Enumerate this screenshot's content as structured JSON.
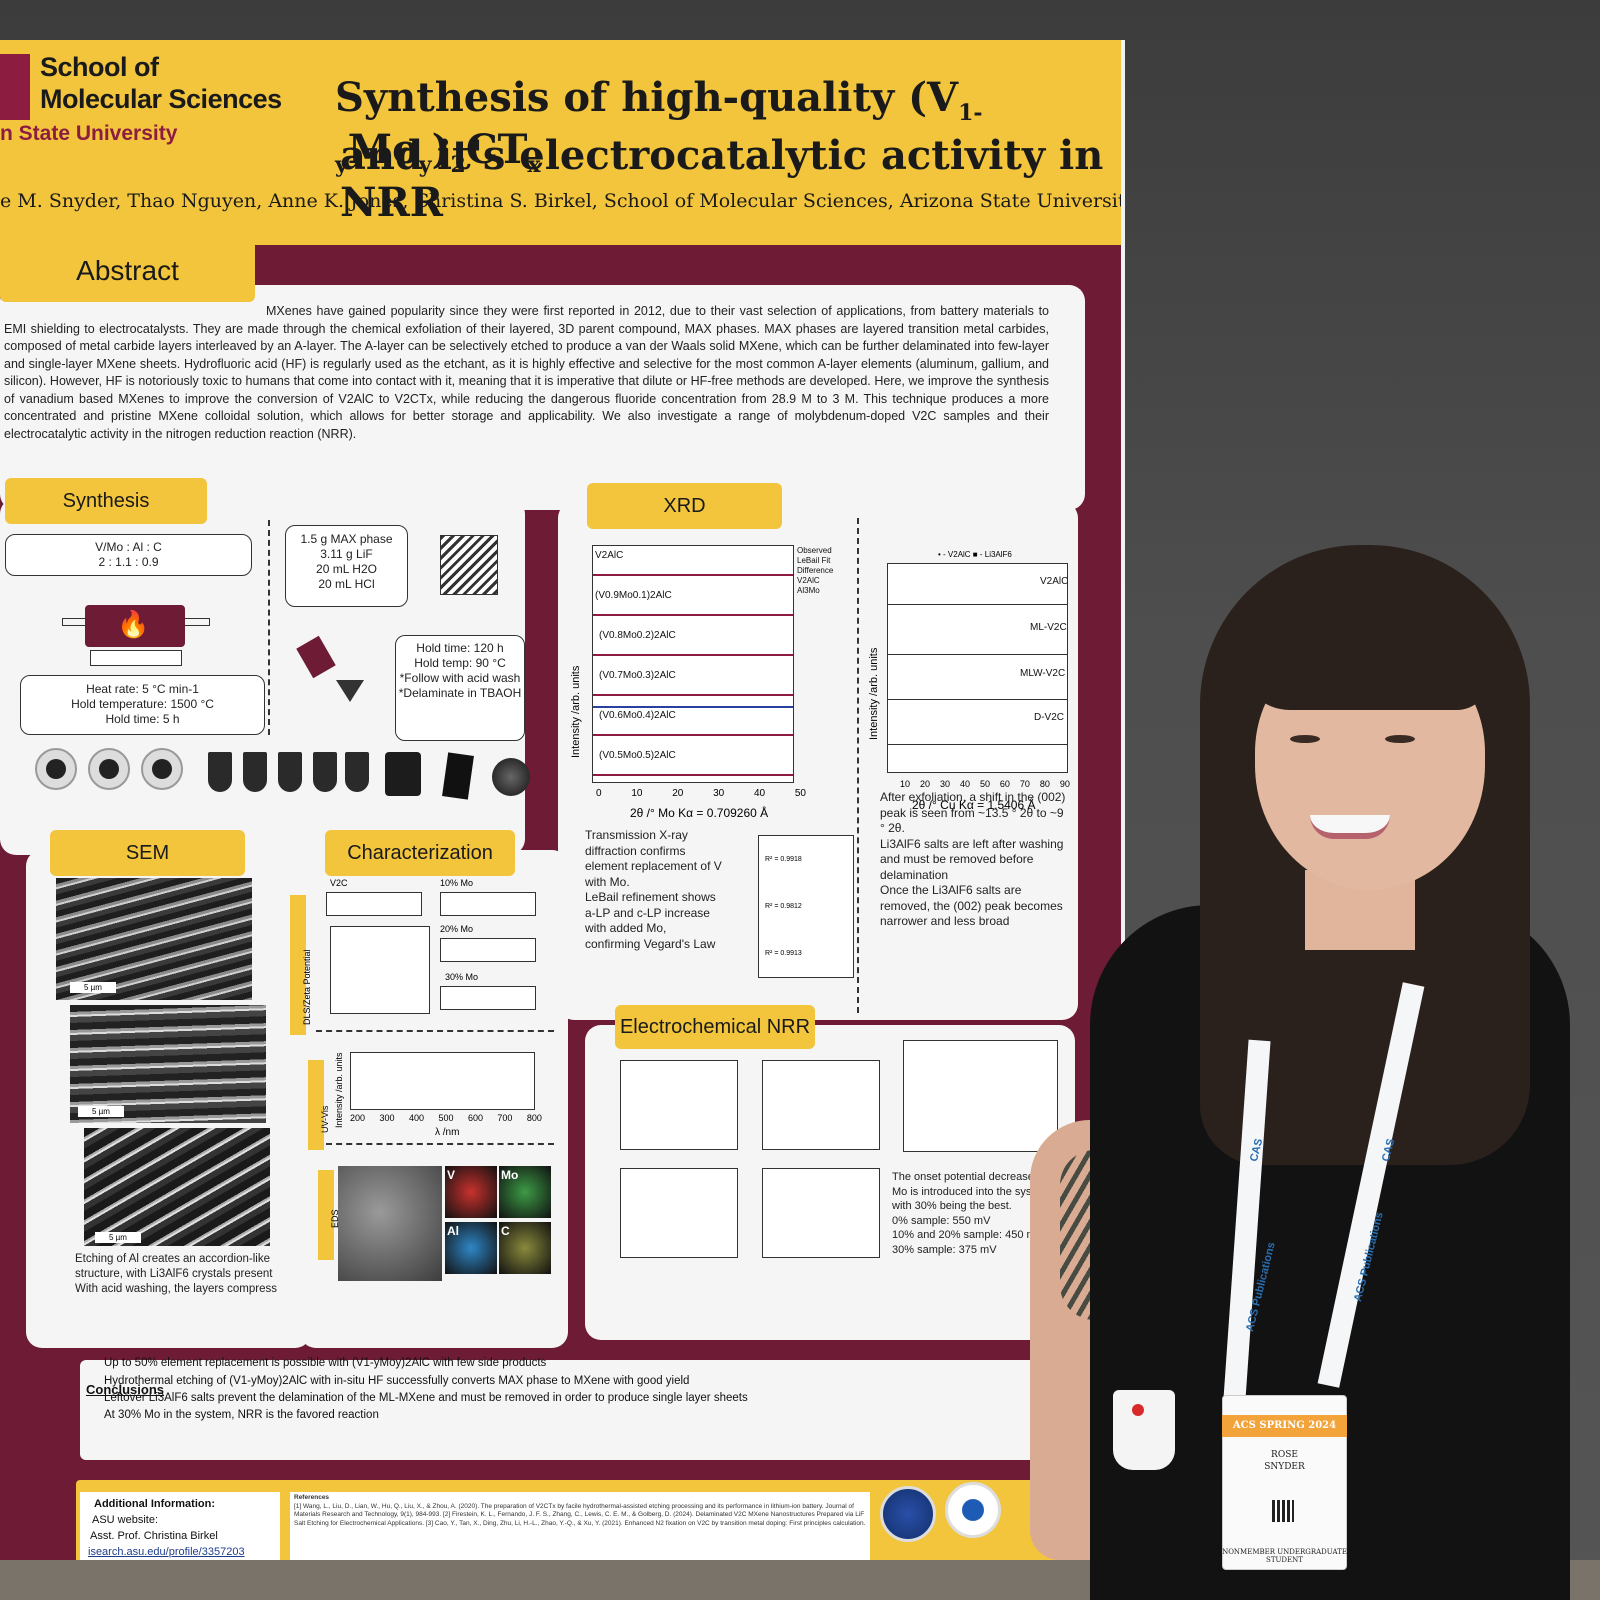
{
  "poster": {
    "logo": {
      "line1": "School of",
      "line2": "Molecular Sciences",
      "line3": "n State University"
    },
    "title_line1": "Synthesis of high-quality (V1-yMoy)2CTx",
    "title_line2": "and it's electrocatalytic activity in NRR",
    "authors": "e M. Snyder, Thao Nguyen, Anne K. Jones, Christina S. Birkel, School of Molecular Sciences, Arizona State University",
    "abstract": {
      "heading": "Abstract",
      "text": "MXenes have gained popularity since they were first reported in 2012, due to their vast selection of applications, from battery materials to EMI shielding to electrocatalysts. They are made through the chemical exfoliation of their layered, 3D parent compound, MAX phases. MAX phases are layered transition metal carbides, composed of metal carbide layers interleaved by an A-layer. The A-layer can be selectively etched to produce a van der Waals solid MXene, which can be further delaminated into few-layer and single-layer MXene sheets. Hydrofluoric acid (HF) is regularly used as the etchant, as it is highly effective and selective for the most common A-layer elements (aluminum, gallium, and silicon). However, HF is notoriously toxic to humans that come into contact with it, meaning that it is imperative that dilute or HF-free methods are developed. Here, we improve the synthesis of vanadium based MXenes to improve the conversion of V2AlC to V2CTx, while reducing the dangerous fluoride concentration from 28.9 M to 3 M. This technique produces a more concentrated and pristine MXene colloidal solution, which allows for better storage and applicability. We also investigate a range of molybdenum-doped V2C samples and their electrocatalytic activity in the nitrogen reduction reaction (NRR)."
    },
    "synthesis": {
      "heading": "Synthesis",
      "ratio_label": "V/Mo : Al : C",
      "ratio_value": "2 : 1.1 : 0.9",
      "heat_rate": "Heat rate: 5 °C min-1",
      "hold_temperature": "Hold temperature: 1500 °C",
      "hold_time": "Hold time: 5 h",
      "reagents": [
        "1.5 g MAX phase",
        "3.11 g LiF",
        "20 mL H2O",
        "20 mL HCl"
      ],
      "etch_conditions": [
        "Hold time: 120 h",
        "Hold temp: 90 °C",
        "*Follow with acid wash",
        "*Delaminate in TBAOH"
      ],
      "flame_icon": "fire-icon"
    },
    "xrd": {
      "heading": "XRD",
      "traces": [
        "V2AlC",
        "(V0.9Mo0.1)2AlC",
        "(V0.8Mo0.2)2AlC",
        "(V0.7Mo0.3)2AlC",
        "(V0.6Mo0.4)2AlC",
        "(V0.5Mo0.5)2AlC"
      ],
      "legend": [
        "Observed",
        "LeBail Fit",
        "Difference",
        "V2AlC",
        "Al3Mo"
      ],
      "y_axis": "Intensity /arb. units",
      "x_ticks": [
        "0",
        "10",
        "20",
        "30",
        "40",
        "50"
      ],
      "x_axis": "2θ /° Mo Kα = 0.709260 Å",
      "right_traces": [
        "V2AlC",
        "ML-V2C",
        "MLW-V2C",
        "D-V2C"
      ],
      "right_legend": "• - V2AlC  ■ - Li3AlF6",
      "right_x_ticks": [
        "10",
        "20",
        "30",
        "40",
        "50",
        "60",
        "70",
        "80",
        "90"
      ],
      "right_x_axis": "2θ /° Cu Kα = 1.5406 Å",
      "bullets_left": [
        "Transmission X-ray diffraction confirms element replacement of V with Mo.",
        "LeBail refinement shows a-LP and c-LP increase with added Mo, confirming Vegard's Law"
      ],
      "fit_labels": [
        "R² = 0.9918",
        "R² = 0.9812",
        "R² = 0.9913"
      ],
      "bullets_right": [
        "After exfoliation, a shift in the (002) peak is seen from ~13.5 ° 2θ to ~9 ° 2θ.",
        "Li3AlF6 salts are left after washing and must be removed before delamination",
        "Once the Li3AlF6 salts are removed, the (002) peak becomes narrower and less broad"
      ]
    },
    "sem": {
      "heading": "SEM",
      "scale_bars": [
        "5 µm",
        "5 µm",
        "5 µm"
      ],
      "bullets": [
        "Etching of Al creates an accordion-like structure, with Li3AlF6 crystals present",
        "With acid washing, the layers compress"
      ]
    },
    "characterization": {
      "heading": "Characterization",
      "side_labels": [
        "DLS/Zeta Potential",
        "UV-Vis",
        "EDS"
      ],
      "samples": [
        "V2C",
        "10% Mo",
        "20% Mo",
        "30% Mo"
      ],
      "uvvis_x_ticks": [
        "200",
        "300",
        "400",
        "500",
        "600",
        "700",
        "800"
      ],
      "uvvis_x_axis": "λ /nm",
      "uvvis_y_axis": "Intensity /arb. units",
      "eds_labels": [
        "V",
        "Mo",
        "Al",
        "C"
      ],
      "eds_colors": [
        "#c8312d",
        "#3c9a45",
        "#2f86c6",
        "#8a8a3c"
      ]
    },
    "nrr": {
      "heading": "Electrochemical NRR",
      "bullets": [
        "The onset potential decreases as Mo is introduced into the system, with 30% being the best.",
        "0% sample: 550 mV",
        "10% and 20% sample: 450 mV",
        "30% sample: 375 mV"
      ]
    },
    "conclusions": {
      "heading": "Conclusions",
      "items": [
        "Up to 50% element replacement is possible with (V1-yMoy)2AlC with few side products",
        "Hydrothermal etching of (V1-yMoy)2AlC with in-situ HF successfully converts MAX phase to MXene with good yield",
        "Leftover Li3AlF6 salts prevent the delamination of the ML-MXene and must be removed in order to produce single layer sheets",
        "At 30% Mo in the system, NRR is the favored reaction"
      ]
    },
    "footer": {
      "additional_info": "Additional Information:",
      "asu_website": "ASU website:",
      "advisor": "Asst. Prof. Christina Birkel",
      "url": "isearch.asu.edu/profile/3357203",
      "references_heading": "References",
      "references": "[1] Wang, L., Liu, D., Lian, W., Hu, Q., Liu, X., & Zhou, A. (2020). The preparation of V2CTx by facile hydrothermal-assisted etching processing and its performance in lithium-ion battery. Journal of Materials Research and Technology, 9(1), 984-993. [2] Firestein, K. L., Fernando, J. F. S., Zhang, C., Lewis, C. E. M., & Golberg, D. (2024). Delaminated V2C MXene Nanostructures Prepared via LiF Salt Etching for Electrochemical Applications. [3] Cao, Y., Tan, X., Ding, Zhu, Li, H.-L., Zhao, Y.-Q., & Xu, Y. (2021). Enhanced N2 fixation on V2C by transition metal doping: First principles calculation."
    }
  },
  "badge": {
    "event": "ACS SPRING 2024",
    "first_name": "ROSE",
    "last_name": "SNYDER",
    "lanyard_text": [
      "ACS Publications",
      "CAS"
    ],
    "status": "NONMEMBER UNDERGRADUATE STUDENT"
  }
}
